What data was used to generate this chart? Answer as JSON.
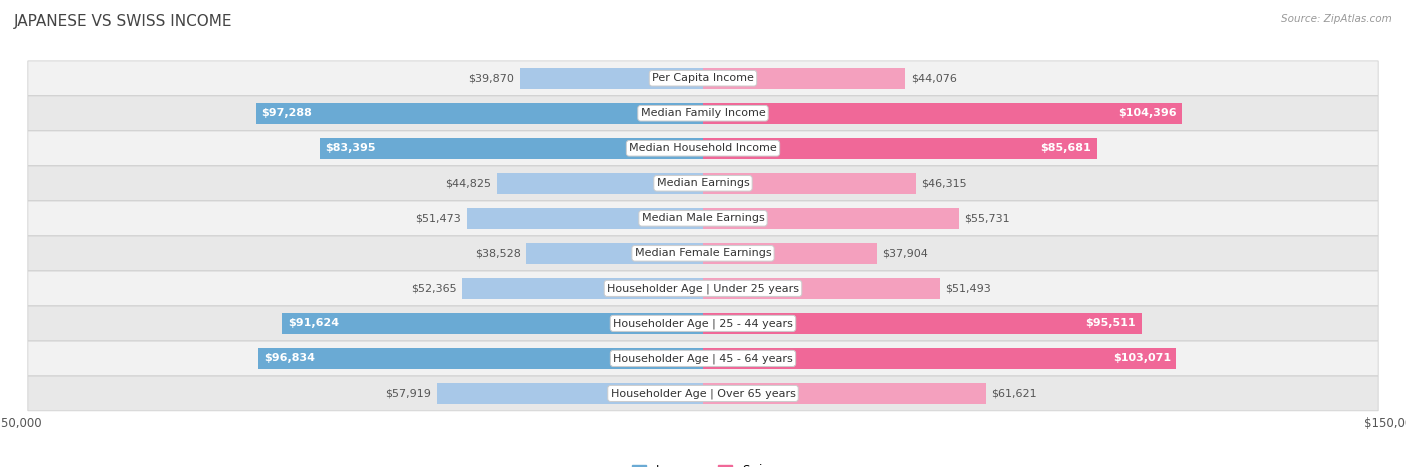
{
  "title": "JAPANESE VS SWISS INCOME",
  "source": "Source: ZipAtlas.com",
  "categories": [
    "Per Capita Income",
    "Median Family Income",
    "Median Household Income",
    "Median Earnings",
    "Median Male Earnings",
    "Median Female Earnings",
    "Householder Age | Under 25 years",
    "Householder Age | 25 - 44 years",
    "Householder Age | 45 - 64 years",
    "Householder Age | Over 65 years"
  ],
  "japanese_values": [
    39870,
    97288,
    83395,
    44825,
    51473,
    38528,
    52365,
    91624,
    96834,
    57919
  ],
  "swiss_values": [
    44076,
    104396,
    85681,
    46315,
    55731,
    37904,
    51493,
    95511,
    103071,
    61621
  ],
  "japanese_labels": [
    "$39,870",
    "$97,288",
    "$83,395",
    "$44,825",
    "$51,473",
    "$38,528",
    "$52,365",
    "$91,624",
    "$96,834",
    "$57,919"
  ],
  "swiss_labels": [
    "$44,076",
    "$104,396",
    "$85,681",
    "$46,315",
    "$55,731",
    "$37,904",
    "$51,493",
    "$95,511",
    "$103,071",
    "$61,621"
  ],
  "japanese_color_light": "#a8c8e8",
  "japanese_color_dark": "#6aaad4",
  "swiss_color_light": "#f4a0be",
  "swiss_color_dark": "#f06898",
  "max_value": 150000,
  "bar_height": 0.6,
  "row_bg_colors": [
    "#f2f2f2",
    "#e8e8e8"
  ],
  "row_border_color": "#d0d0d0",
  "background_color": "#ffffff",
  "title_fontsize": 11,
  "label_fontsize": 8,
  "category_fontsize": 8,
  "axis_label_fontsize": 8.5,
  "large_threshold": 65000
}
